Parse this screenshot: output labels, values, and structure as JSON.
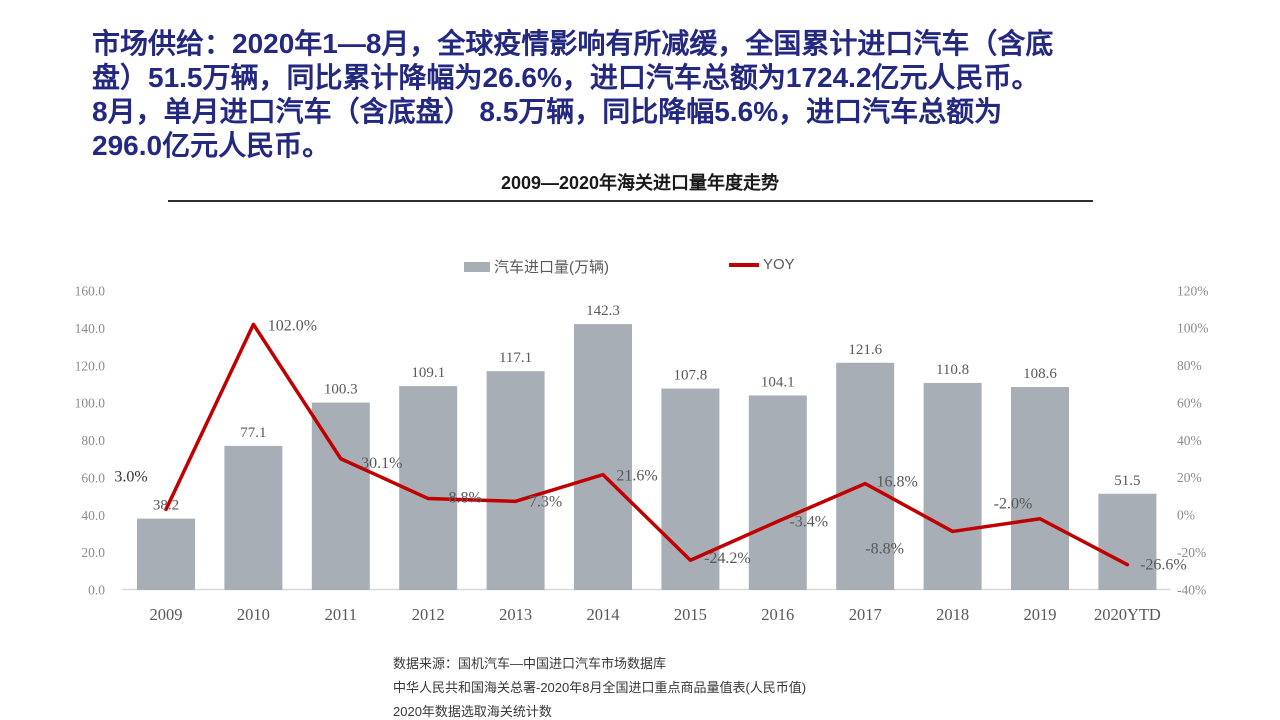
{
  "header": {
    "color": "#232881",
    "lines": [
      "市场供给：2020年1—8月，全球疫情影响有所减缓，全国累计进口汽车（含底",
      "盘）51.5万辆，同比累计降幅为26.6%，进口汽车总额为1724.2亿元人民币。",
      "8月，单月进口汽车（含底盘） 8.5万辆，同比降幅5.6%，进口汽车总额为",
      "296.0亿元人民币。"
    ]
  },
  "chart": {
    "title": "2009—2020年海关进口量年度走势",
    "legend": [
      {
        "label": "汽车进口量(万辆)",
        "swatch": "bar",
        "color": "#A7AEB5"
      },
      {
        "label": "YOY",
        "swatch": "line",
        "color": "#C00000"
      }
    ]
  },
  "chart_data": {
    "type": "bar",
    "title": "2009—2020年海关进口量年度走势",
    "categories": [
      "2009",
      "2010",
      "2011",
      "2012",
      "2013",
      "2014",
      "2015",
      "2016",
      "2017",
      "2018",
      "2019",
      "2020YTD"
    ],
    "series": [
      {
        "name": "汽车进口量(万辆)",
        "type": "bar",
        "axis": "left",
        "color": "#A7AEB5",
        "values": [
          38.2,
          77.1,
          100.3,
          109.1,
          117.1,
          142.3,
          107.8,
          104.1,
          121.6,
          110.8,
          108.6,
          51.5
        ],
        "labels": [
          "38.2",
          "77.1",
          "100.3",
          "109.1",
          "117.1",
          "142.3",
          "107.8",
          "104.1",
          "121.6",
          "110.8",
          "108.6",
          "51.5"
        ]
      },
      {
        "name": "YOY",
        "type": "line",
        "axis": "right",
        "color": "#C00000",
        "values": [
          3.0,
          102.0,
          30.1,
          8.8,
          7.3,
          21.6,
          -24.2,
          -3.4,
          16.8,
          -8.8,
          -2.0,
          -26.6
        ],
        "labels": [
          "3.0%",
          "102.0%",
          "30.1%",
          "8.8%",
          "7.3%",
          "21.6%",
          "-24.2%",
          "-3.4%",
          "16.8%",
          "-8.8%",
          "-2.0%",
          "-26.6%"
        ]
      }
    ],
    "left_axis": {
      "min": 0,
      "max": 160,
      "step": 20,
      "ticks": [
        "0.0",
        "20.0",
        "40.0",
        "60.0",
        "80.0",
        "100.0",
        "120.0",
        "140.0",
        "160.0"
      ]
    },
    "right_axis": {
      "min": -40,
      "max": 120,
      "step": 20,
      "ticks": [
        "-40%",
        "-20%",
        "0%",
        "20%",
        "40%",
        "60%",
        "80%",
        "100%",
        "120%"
      ]
    },
    "grid": false,
    "legend_position": "top"
  },
  "footer": {
    "lines": [
      "数据来源：国机汽车—中国进口汽车市场数据库",
      "中华人民共和国海关总署-2020年8月全国进口重点商品量值表(人民币值)",
      "2020年数据选取海关统计数"
    ]
  },
  "colors": {
    "bar_label": "#595959",
    "line_label": "#595959",
    "first_line_label": "#333333",
    "axis_tick": "#8c8c8c",
    "x_label": "#595959",
    "baseline": "#d9d9d9"
  }
}
